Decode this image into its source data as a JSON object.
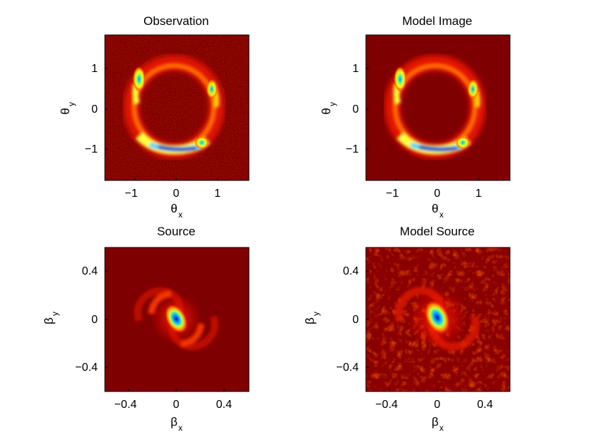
{
  "chart_data": [
    {
      "type": "heatmap",
      "title": "Observation",
      "xlabel": "θ",
      "xlabel_sub": "x",
      "ylabel": "θ",
      "ylabel_sub": "y",
      "xlim": [
        -1.75,
        1.75
      ],
      "ylim": [
        -1.75,
        1.75
      ],
      "xticks": [
        -1,
        0,
        1
      ],
      "yticks": [
        1,
        0,
        -1
      ],
      "colormap": "jet",
      "content": "Einstein ring, radius approx 1.0; bright arc along the bottom (peak near θx 0.3, θy -1.0), bright knots near (-0.9, 0.75) and (0.9, 0.6); noisy background",
      "noise": true
    },
    {
      "type": "heatmap",
      "title": "Model Image",
      "xlabel": "θ",
      "xlabel_sub": "x",
      "ylabel": "θ",
      "ylabel_sub": "y",
      "xlim": [
        -1.75,
        1.75
      ],
      "ylim": [
        -1.75,
        1.75
      ],
      "xticks": [
        -1,
        0,
        1
      ],
      "yticks": [
        1,
        0,
        -1
      ],
      "colormap": "jet",
      "content": "Einstein ring, radius approx 1.0; bright arc along the bottom, bright knots near (-0.9, 0.75) and (0.9, 0.6); smooth background",
      "noise": false
    },
    {
      "type": "heatmap",
      "title": "Source",
      "xlabel": "β",
      "xlabel_sub": "x",
      "ylabel": "β",
      "ylabel_sub": "y",
      "xlim": [
        -0.6,
        0.6
      ],
      "ylim": [
        -0.6,
        0.6
      ],
      "xticks": [
        -0.4,
        0,
        0.4
      ],
      "yticks": [
        0.4,
        0,
        -0.4
      ],
      "colormap": "jet",
      "content": "two-armed spiral galaxy centred at (0, 0) with bright nucleus",
      "noise": false
    },
    {
      "type": "heatmap",
      "title": "Model Source",
      "xlabel": "β",
      "xlabel_sub": "x",
      "ylabel": "β",
      "ylabel_sub": "y",
      "xlim": [
        -0.6,
        0.6
      ],
      "ylim": [
        -0.6,
        0.6
      ],
      "xticks": [
        -0.4,
        0,
        0.4
      ],
      "yticks": [
        0.4,
        0,
        -0.4
      ],
      "colormap": "jet",
      "content": "pixelated reconstruction of the spiral source, bright nucleus at (0, 0), mottled background",
      "noise": true
    }
  ],
  "tick_labels": {
    "theta_x": [
      "−1",
      "0",
      "1"
    ],
    "theta_y": [
      "1",
      "0",
      "−1"
    ],
    "beta_x": [
      "−0.4",
      "0",
      "0.4"
    ],
    "beta_y": [
      "0.4",
      "0",
      "−0.4"
    ]
  },
  "colors": {
    "background": "#7f0000",
    "frame": "#000000"
  }
}
